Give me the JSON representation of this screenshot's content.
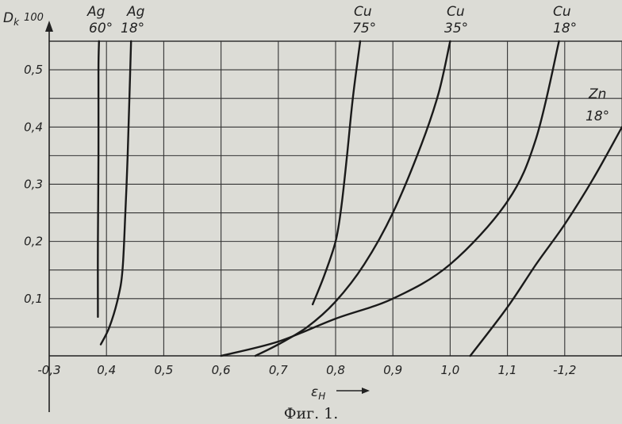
{
  "chart_data": {
    "type": "line",
    "caption": "Фиг. 1.",
    "ylabel": "D",
    "ylabel_sub": "k",
    "ylabel_mult": "100",
    "xlabel": "ε",
    "xlabel_sub": "H",
    "xlim": [
      0.3,
      1.3
    ],
    "ylim": [
      0,
      0.55
    ],
    "grid": true,
    "x_ticks": [
      {
        "value": 0.3,
        "label": "-0,3"
      },
      {
        "value": 0.4,
        "label": "0,4"
      },
      {
        "value": 0.5,
        "label": "0,5"
      },
      {
        "value": 0.6,
        "label": "0,6"
      },
      {
        "value": 0.7,
        "label": "0,7"
      },
      {
        "value": 0.8,
        "label": "0,8"
      },
      {
        "value": 0.9,
        "label": "0,9"
      },
      {
        "value": 1.0,
        "label": "1,0"
      },
      {
        "value": 1.1,
        "label": "1,1"
      },
      {
        "value": 1.2,
        "label": "-1,2"
      }
    ],
    "y_ticks": [
      {
        "value": 0.1,
        "label": "0,1"
      },
      {
        "value": 0.2,
        "label": "0,2"
      },
      {
        "value": 0.3,
        "label": "0,3"
      },
      {
        "value": 0.4,
        "label": "0,4"
      },
      {
        "value": 0.5,
        "label": "0,5"
      }
    ],
    "series": [
      {
        "metal": "Ag",
        "temp": "60°",
        "x": [
          0.385,
          0.385,
          0.386,
          0.386,
          0.387
        ],
        "y": [
          0.068,
          0.2,
          0.35,
          0.5,
          0.55
        ]
      },
      {
        "metal": "Ag",
        "temp": "18°",
        "x": [
          0.39,
          0.405,
          0.42,
          0.428,
          0.433,
          0.437,
          0.44,
          0.443
        ],
        "y": [
          0.02,
          0.05,
          0.1,
          0.15,
          0.25,
          0.35,
          0.45,
          0.55
        ]
      },
      {
        "metal": "Cu",
        "temp": "75°",
        "x": [
          0.76,
          0.78,
          0.8,
          0.81,
          0.82,
          0.83,
          0.843
        ],
        "y": [
          0.09,
          0.14,
          0.2,
          0.26,
          0.35,
          0.45,
          0.55
        ]
      },
      {
        "metal": "Cu",
        "temp": "35°",
        "x": [
          0.66,
          0.7,
          0.75,
          0.8,
          0.85,
          0.9,
          0.95,
          0.98,
          1.0
        ],
        "y": [
          0.0,
          0.02,
          0.05,
          0.095,
          0.16,
          0.25,
          0.37,
          0.46,
          0.55
        ]
      },
      {
        "metal": "Cu",
        "temp": "18°",
        "x": [
          0.6,
          0.7,
          0.8,
          0.9,
          1.0,
          1.1,
          1.15,
          1.19
        ],
        "y": [
          0.0,
          0.025,
          0.065,
          0.1,
          0.16,
          0.27,
          0.38,
          0.55
        ]
      },
      {
        "metal": "Zn",
        "temp": "18°",
        "x": [
          1.035,
          1.1,
          1.15,
          1.2,
          1.25,
          1.3
        ],
        "y": [
          0.0,
          0.085,
          0.16,
          0.23,
          0.31,
          0.4
        ]
      }
    ]
  }
}
